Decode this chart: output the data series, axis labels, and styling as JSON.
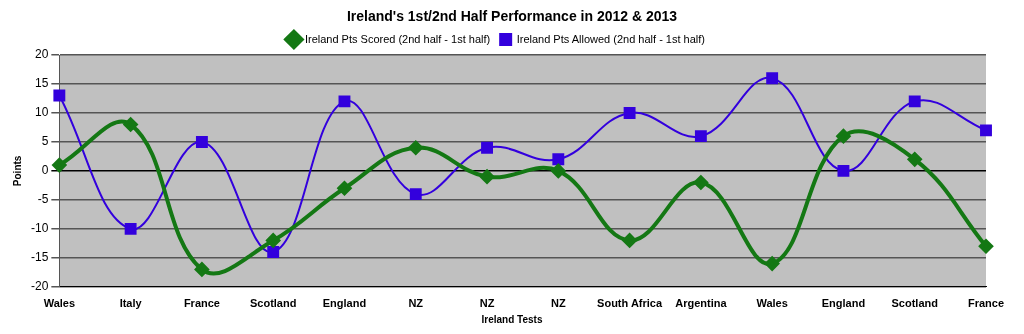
{
  "chart_data": {
    "type": "line",
    "title": "Ireland's 1st/2nd Half Performance in 2012 & 2013",
    "xlabel": "Ireland Tests",
    "ylabel": "Points",
    "categories": [
      "Wales",
      "Italy",
      "France",
      "Scotland",
      "England",
      "NZ",
      "NZ",
      "NZ",
      "South Africa",
      "Argentina",
      "Wales",
      "England",
      "Scotland",
      "France"
    ],
    "series": [
      {
        "name": "Ireland Pts Scored (2nd half - 1st half)",
        "color": "#147814",
        "marker": "diamond",
        "values": [
          1,
          8,
          -17,
          -12,
          -3,
          4,
          -1,
          0,
          -12,
          -2,
          -16,
          6,
          2,
          -13
        ]
      },
      {
        "name": "Ireland Pts Allowed (2nd half - 1st half)",
        "color": "#3300dd",
        "marker": "square",
        "values": [
          13,
          -10,
          5,
          -14,
          12,
          -4,
          4,
          2,
          10,
          6,
          16,
          0,
          12,
          7
        ]
      }
    ],
    "ylim": [
      -20,
      20
    ],
    "yticks": [
      -20,
      -15,
      -10,
      -5,
      0,
      5,
      10,
      15,
      20
    ],
    "grid": "y",
    "legend": "top"
  }
}
